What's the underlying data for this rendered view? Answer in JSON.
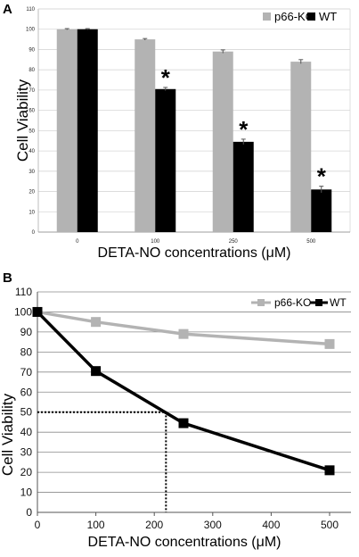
{
  "chart_data": [
    {
      "panel": "A",
      "type": "bar",
      "title": "",
      "xlabel": "DETA-NO concentrations (μM)",
      "ylabel": "Cell Viability",
      "categories": [
        "0",
        "100",
        "250",
        "500"
      ],
      "ylim": [
        0,
        110
      ],
      "yticks": [
        "0",
        "10",
        "20",
        "30",
        "40",
        "50",
        "60",
        "70",
        "80",
        "90",
        "100",
        "110"
      ],
      "grid": true,
      "legend_position": "top-right",
      "series": [
        {
          "name": "p66-KO",
          "color": "#b3b3b3",
          "values": [
            100,
            95,
            89,
            84
          ],
          "errors": [
            0.3,
            0.4,
            0.8,
            1.0
          ]
        },
        {
          "name": "WT",
          "color": "#000000",
          "values": [
            100,
            70.5,
            44.5,
            21
          ],
          "errors": [
            0.3,
            0.8,
            1.3,
            1.6
          ]
        }
      ],
      "significance_marker": "*",
      "significant_categories": [
        "100",
        "250",
        "500"
      ]
    },
    {
      "panel": "B",
      "type": "line",
      "title": "",
      "xlabel": "DETA-NO concentrations (μM)",
      "ylabel": "Cell Viability",
      "xlim": [
        0,
        500
      ],
      "ylim": [
        0,
        110
      ],
      "xticks": [
        "0",
        "100",
        "200",
        "300",
        "400",
        "500"
      ],
      "yticks": [
        "0",
        "10",
        "20",
        "30",
        "40",
        "50",
        "60",
        "70",
        "80",
        "90",
        "100",
        "110"
      ],
      "grid": true,
      "legend_position": "top-right",
      "series": [
        {
          "name": "p66-KO",
          "color": "#b3b3b3",
          "x": [
            0,
            100,
            250,
            500
          ],
          "y": [
            100,
            95,
            89,
            84
          ]
        },
        {
          "name": "WT",
          "color": "#000000",
          "x": [
            0,
            100,
            250,
            500
          ],
          "y": [
            100,
            70.5,
            44.5,
            21
          ]
        }
      ],
      "ic50_guide": {
        "x": 220,
        "y": 50
      }
    }
  ]
}
